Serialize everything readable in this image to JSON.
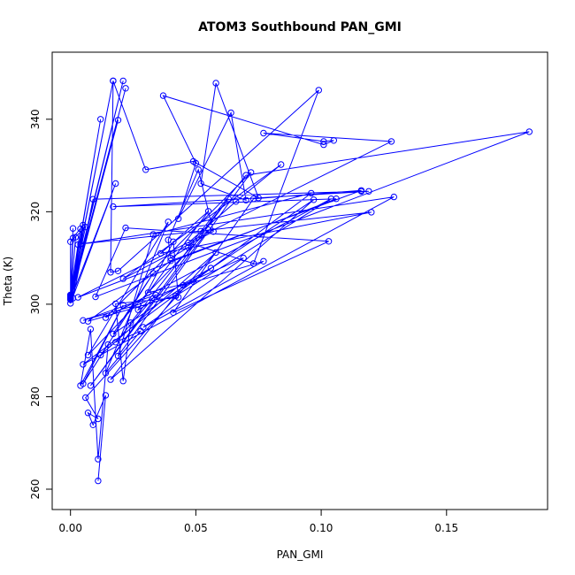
{
  "chart_data": {
    "type": "scatter",
    "mode": "lines+markers",
    "title": "ATOM3 Southbound PAN_GMI",
    "xlabel": "PAN_GMI",
    "ylabel": "Theta (K)",
    "xlim": [
      -0.0073,
      0.1903
    ],
    "ylim": [
      255.6,
      354.5
    ],
    "xticks": [
      0.0,
      0.05,
      0.1,
      0.15
    ],
    "xtick_labels": [
      "0.00",
      "0.05",
      "0.10",
      "0.15"
    ],
    "yticks": [
      260,
      280,
      300,
      320,
      340
    ],
    "ytick_labels": [
      "260",
      "280",
      "300",
      "320",
      "340"
    ],
    "grid": false,
    "legend": "none",
    "series_color": "#0000ff",
    "series": [
      {
        "x": [
          0.0,
          0.017,
          0.0,
          0.021,
          0.0,
          0.022,
          0.0,
          0.012,
          0.0,
          0.019,
          0.0,
          0.018,
          0.0,
          0.003,
          0.0,
          0.001,
          0.0,
          0.002,
          0.0,
          0.004,
          0.0,
          0.006,
          0.0,
          0.0,
          0.001,
          0.005,
          0.001,
          0.009,
          0.116,
          0.119,
          0.017,
          0.106,
          0.003,
          0.128,
          0.077,
          0.101,
          0.105,
          0.101,
          0.037,
          0.05,
          0.043,
          0.064,
          0.07,
          0.052,
          0.058,
          0.075,
          0.049,
          0.03,
          0.017,
          0.016,
          0.016,
          0.019,
          0.099,
          0.073,
          0.047,
          0.066,
          0.084,
          0.021,
          0.057,
          0.051,
          0.039,
          0.04,
          0.047,
          0.052,
          0.07,
          0.183,
          0.01,
          0.022,
          0.103,
          0.041,
          0.073,
          0.116,
          0.04,
          0.007,
          0.042,
          0.104,
          0.014,
          0.072,
          0.019,
          0.033,
          0.096,
          0.049,
          0.031,
          0.055,
          0.036,
          0.12,
          0.004,
          0.129,
          0.005,
          0.056,
          0.027,
          0.041,
          0.043,
          0.018,
          0.021,
          0.024,
          0.063,
          0.008,
          0.055,
          0.007,
          0.039,
          0.014,
          0.028,
          0.018,
          0.034,
          0.005,
          0.027,
          0.069,
          0.029,
          0.077,
          0.045,
          0.016,
          0.097,
          0.017,
          0.033,
          0.005,
          0.021,
          0.004,
          0.008,
          0.011,
          0.015,
          0.012,
          0.058,
          0.006,
          0.011,
          0.007,
          0.009,
          0.014,
          0.011
        ],
        "y": [
          301.5,
          348.3,
          301.8,
          348.3,
          301.2,
          346.7,
          301.5,
          340.0,
          302.0,
          339.8,
          301.0,
          326.1,
          300.2,
          312.9,
          302.0,
          316.4,
          301.0,
          314.5,
          301.6,
          316.3,
          301.8,
          316.7,
          313.5,
          301.3,
          314.3,
          317.1,
          301.3,
          322.7,
          324.4,
          324.4,
          321.1,
          322.8,
          301.5,
          335.2,
          337.0,
          335.2,
          335.4,
          334.5,
          345.1,
          330.5,
          318.5,
          341.4,
          322.5,
          326.1,
          347.8,
          323.0,
          330.9,
          329.1,
          348.3,
          306.9,
          306.9,
          307.2,
          346.3,
          308.8,
          313.3,
          322.2,
          330.2,
          305.5,
          315.7,
          329.1,
          313.9,
          310.0,
          312.3,
          315.8,
          327.9,
          337.3,
          301.6,
          316.5,
          313.6,
          298.2,
          322.8,
          324.6,
          309.4,
          296.3,
          301.8,
          322.8,
          297.1,
          328.5,
          288.8,
          315.1,
          324.0,
          304.9,
          302.5,
          320.1,
          311.0,
          319.9,
          313.0,
          323.2,
          287.0,
          307.8,
          298.8,
          313.5,
          301.5,
          300.1,
          283.4,
          296.0,
          322.8,
          282.4,
          316.1,
          289.0,
          317.8,
          285.1,
          294.2,
          291.8,
          302.0,
          296.5,
          299.9,
          310.0,
          295.0,
          309.3,
          304.1,
          283.7,
          322.6,
          293.6,
          306.7,
          282.8,
          299.8,
          282.4,
          294.6,
          266.5,
          291.3,
          289.0,
          311.2,
          279.8,
          275.2,
          276.5,
          273.9,
          280.3,
          261.8
        ]
      }
    ]
  }
}
